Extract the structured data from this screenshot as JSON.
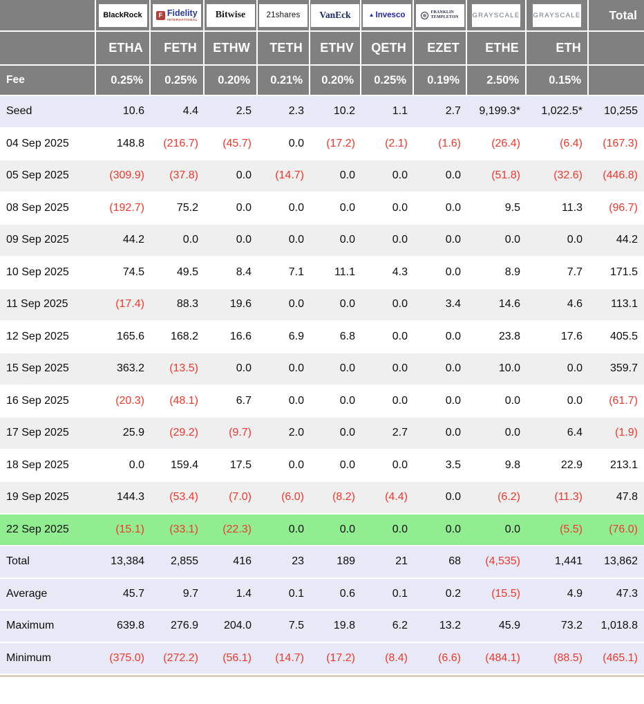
{
  "header": {
    "fee_label": "Fee",
    "total_label": "Total"
  },
  "logos": [
    {
      "type": "blackrock",
      "text": "BlackRock"
    },
    {
      "type": "fidelity",
      "letter": "F",
      "text": "Fidelity",
      "sub": "INTERNATIONAL"
    },
    {
      "type": "bitwise",
      "text": "Bitwise"
    },
    {
      "type": "shares21",
      "text": "21shares"
    },
    {
      "type": "vaneck",
      "text": "VanEck"
    },
    {
      "type": "invesco",
      "text": "Invesco",
      "icon": "▲"
    },
    {
      "type": "franklin",
      "line1": "FRANKLIN",
      "line2": "TEMPLETON"
    },
    {
      "type": "grayscale",
      "text": "GRAYSCALE"
    },
    {
      "type": "grayscale",
      "text": "GRAYSCALE"
    }
  ],
  "colors": {
    "header_bg": "#808080",
    "header_text": "#ffffff",
    "negative_text": "#f0372b",
    "positive_text": "#0c0c0c",
    "seed_row_bg": "#e7eaf6",
    "alt_row_bg": "#efefef",
    "white_row_bg": "#ffffff",
    "highlight_row_bg": "#90ee90",
    "summary_row_bg": "#e7eaf6",
    "bottom_border": "#d8d0ba"
  },
  "chart_data": {
    "type": "table",
    "providers": [
      "BlackRock",
      "Fidelity",
      "Bitwise",
      "21shares",
      "VanEck",
      "Invesco",
      "Franklin Templeton",
      "Grayscale",
      "Grayscale"
    ],
    "tickers": [
      "ETHA",
      "FETH",
      "ETHW",
      "TETH",
      "ETHV",
      "QETH",
      "EZET",
      "ETHE",
      "ETH"
    ],
    "fees": [
      "0.25%",
      "0.25%",
      "0.20%",
      "0.21%",
      "0.20%",
      "0.25%",
      "0.19%",
      "2.50%",
      "0.15%"
    ],
    "total_column_label": "Total",
    "rows": [
      {
        "label": "Seed",
        "variant": "seed",
        "values": [
          "10.6",
          "4.4",
          "2.5",
          "2.3",
          "10.2",
          "1.1",
          "2.7",
          "9,199.3*",
          "1,022.5*",
          "10,255"
        ]
      },
      {
        "label": "04 Sep 2025",
        "variant": "white",
        "values": [
          "148.8",
          "(216.7)",
          "(45.7)",
          "0.0",
          "(17.2)",
          "(2.1)",
          "(1.6)",
          "(26.4)",
          "(6.4)",
          "(167.3)"
        ]
      },
      {
        "label": "05 Sep 2025",
        "variant": "alt",
        "values": [
          "(309.9)",
          "(37.8)",
          "0.0",
          "(14.7)",
          "0.0",
          "0.0",
          "0.0",
          "(51.8)",
          "(32.6)",
          "(446.8)"
        ]
      },
      {
        "label": "08 Sep 2025",
        "variant": "white",
        "values": [
          "(192.7)",
          "75.2",
          "0.0",
          "0.0",
          "0.0",
          "0.0",
          "0.0",
          "9.5",
          "11.3",
          "(96.7)"
        ]
      },
      {
        "label": "09 Sep 2025",
        "variant": "alt",
        "values": [
          "44.2",
          "0.0",
          "0.0",
          "0.0",
          "0.0",
          "0.0",
          "0.0",
          "0.0",
          "0.0",
          "44.2"
        ]
      },
      {
        "label": "10 Sep 2025",
        "variant": "white",
        "values": [
          "74.5",
          "49.5",
          "8.4",
          "7.1",
          "11.1",
          "4.3",
          "0.0",
          "8.9",
          "7.7",
          "171.5"
        ]
      },
      {
        "label": "11 Sep 2025",
        "variant": "alt",
        "values": [
          "(17.4)",
          "88.3",
          "19.6",
          "0.0",
          "0.0",
          "0.0",
          "3.4",
          "14.6",
          "4.6",
          "113.1"
        ]
      },
      {
        "label": "12 Sep 2025",
        "variant": "white",
        "values": [
          "165.6",
          "168.2",
          "16.6",
          "6.9",
          "6.8",
          "0.0",
          "0.0",
          "23.8",
          "17.6",
          "405.5"
        ]
      },
      {
        "label": "15 Sep 2025",
        "variant": "alt",
        "values": [
          "363.2",
          "(13.5)",
          "0.0",
          "0.0",
          "0.0",
          "0.0",
          "0.0",
          "10.0",
          "0.0",
          "359.7"
        ]
      },
      {
        "label": "16 Sep 2025",
        "variant": "white",
        "values": [
          "(20.3)",
          "(48.1)",
          "6.7",
          "0.0",
          "0.0",
          "0.0",
          "0.0",
          "0.0",
          "0.0",
          "(61.7)"
        ]
      },
      {
        "label": "17 Sep 2025",
        "variant": "alt",
        "values": [
          "25.9",
          "(29.2)",
          "(9.7)",
          "2.0",
          "0.0",
          "2.7",
          "0.0",
          "0.0",
          "6.4",
          "(1.9)"
        ]
      },
      {
        "label": "18 Sep 2025",
        "variant": "white",
        "values": [
          "0.0",
          "159.4",
          "17.5",
          "0.0",
          "0.0",
          "0.0",
          "3.5",
          "9.8",
          "22.9",
          "213.1"
        ]
      },
      {
        "label": "19 Sep 2025",
        "variant": "alt",
        "values": [
          "144.3",
          "(53.4)",
          "(7.0)",
          "(6.0)",
          "(8.2)",
          "(4.4)",
          "0.0",
          "(6.2)",
          "(11.3)",
          "47.8"
        ]
      },
      {
        "label": "22 Sep 2025",
        "variant": "highlight",
        "values": [
          "(15.1)",
          "(33.1)",
          "(22.3)",
          "0.0",
          "0.0",
          "0.0",
          "0.0",
          "0.0",
          "(5.5)",
          "(76.0)"
        ]
      },
      {
        "label": "Total",
        "variant": "summary",
        "values": [
          "13,384",
          "2,855",
          "416",
          "23",
          "189",
          "21",
          "68",
          "(4,535)",
          "1,441",
          "13,862"
        ]
      },
      {
        "label": "Average",
        "variant": "summary",
        "values": [
          "45.7",
          "9.7",
          "1.4",
          "0.1",
          "0.6",
          "0.1",
          "0.2",
          "(15.5)",
          "4.9",
          "47.3"
        ]
      },
      {
        "label": "Maximum",
        "variant": "summary",
        "values": [
          "639.8",
          "276.9",
          "204.0",
          "7.5",
          "19.8",
          "6.2",
          "13.2",
          "45.9",
          "73.2",
          "1,018.8"
        ]
      },
      {
        "label": "Minimum",
        "variant": "summary",
        "values": [
          "(375.0)",
          "(272.2)",
          "(56.1)",
          "(14.7)",
          "(17.2)",
          "(8.4)",
          "(6.6)",
          "(484.1)",
          "(88.5)",
          "(465.1)"
        ]
      }
    ]
  }
}
